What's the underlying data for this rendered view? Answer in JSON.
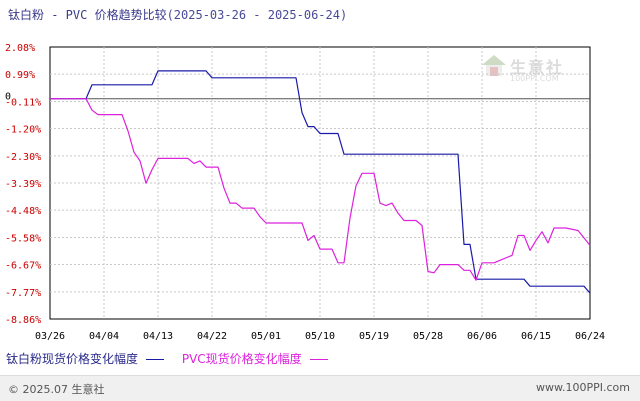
{
  "header": {
    "title": "钛白粉 - PVC 价格趋势比较",
    "date_range": "(2025-03-26 - 2025-06-24)"
  },
  "watermark": {
    "name": "生意社",
    "url": "100PPI.COM"
  },
  "footer": {
    "copyright": "© 2025.07 生意社",
    "site": "www.100PPI.com"
  },
  "colors": {
    "series1": "#1a1aa8",
    "series2": "#dd22dd",
    "axis": "#000000",
    "grid": "#bbbbbb",
    "ytick": "#cc0000"
  },
  "chart_data": {
    "type": "line",
    "title": "钛白粉 - PVC 价格趋势比较",
    "xlabel": "",
    "ylabel": "",
    "x_ticks": [
      "03/26",
      "04/04",
      "04/13",
      "04/22",
      "05/01",
      "05/10",
      "05/19",
      "05/28",
      "06/06",
      "06/15",
      "06/24"
    ],
    "y_ticks": [
      "2.08%",
      "0.99%",
      "-0.11%",
      "-1.20%",
      "-2.30%",
      "-3.39%",
      "-4.48%",
      "-5.58%",
      "-6.67%",
      "-7.77%",
      "-8.86%"
    ],
    "y_tick_values": [
      2.08,
      0.99,
      -0.11,
      -1.2,
      -2.3,
      -3.39,
      -4.48,
      -5.58,
      -6.67,
      -7.77,
      -8.86
    ],
    "ylim": [
      -8.86,
      2.08
    ],
    "zero_label": "0",
    "grid": true,
    "legend": "bottom",
    "x_start": "2025-03-26",
    "x_end": "2025-06-24",
    "series": [
      {
        "name": "钛白粉现货价格变化幅度",
        "color": "#1a1aa8",
        "points": [
          [
            "2025-03-26",
            0.0
          ],
          [
            "2025-04-01",
            0.0
          ],
          [
            "2025-04-02",
            0.56
          ],
          [
            "2025-04-12",
            0.56
          ],
          [
            "2025-04-13",
            1.12
          ],
          [
            "2025-04-21",
            1.12
          ],
          [
            "2025-04-22",
            0.84
          ],
          [
            "2025-05-06",
            0.84
          ],
          [
            "2025-05-07",
            -0.56
          ],
          [
            "2025-05-08",
            -1.12
          ],
          [
            "2025-05-09",
            -1.12
          ],
          [
            "2025-05-10",
            -1.4
          ],
          [
            "2025-05-13",
            -1.4
          ],
          [
            "2025-05-14",
            -2.23
          ],
          [
            "2025-06-02",
            -2.23
          ],
          [
            "2025-06-03",
            -5.86
          ],
          [
            "2025-06-04",
            -5.86
          ],
          [
            "2025-06-05",
            -7.26
          ],
          [
            "2025-06-13",
            -7.26
          ],
          [
            "2025-06-14",
            -7.54
          ],
          [
            "2025-06-23",
            -7.54
          ],
          [
            "2025-06-24",
            -7.82
          ]
        ]
      },
      {
        "name": "PVC现货价格变化幅度",
        "color": "#dd22dd",
        "points": [
          [
            "2025-03-26",
            0.0
          ],
          [
            "2025-04-01",
            0.0
          ],
          [
            "2025-04-02",
            -0.46
          ],
          [
            "2025-04-03",
            -0.64
          ],
          [
            "2025-04-07",
            -0.64
          ],
          [
            "2025-04-08",
            -1.3
          ],
          [
            "2025-04-09",
            -2.15
          ],
          [
            "2025-04-10",
            -2.5
          ],
          [
            "2025-04-11",
            -3.4
          ],
          [
            "2025-04-12",
            -2.85
          ],
          [
            "2025-04-13",
            -2.4
          ],
          [
            "2025-04-18",
            -2.4
          ],
          [
            "2025-04-19",
            -2.6
          ],
          [
            "2025-04-20",
            -2.5
          ],
          [
            "2025-04-21",
            -2.75
          ],
          [
            "2025-04-23",
            -2.75
          ],
          [
            "2025-04-24",
            -3.6
          ],
          [
            "2025-04-25",
            -4.2
          ],
          [
            "2025-04-26",
            -4.2
          ],
          [
            "2025-04-27",
            -4.4
          ],
          [
            "2025-04-29",
            -4.4
          ],
          [
            "2025-04-30",
            -4.75
          ],
          [
            "2025-05-01",
            -5.0
          ],
          [
            "2025-05-07",
            -5.0
          ],
          [
            "2025-05-08",
            -5.7
          ],
          [
            "2025-05-09",
            -5.5
          ],
          [
            "2025-05-10",
            -6.05
          ],
          [
            "2025-05-12",
            -6.05
          ],
          [
            "2025-05-13",
            -6.6
          ],
          [
            "2025-05-14",
            -6.6
          ],
          [
            "2025-05-15",
            -4.8
          ],
          [
            "2025-05-16",
            -3.5
          ],
          [
            "2025-05-17",
            -3.0
          ],
          [
            "2025-05-19",
            -3.0
          ],
          [
            "2025-05-20",
            -4.2
          ],
          [
            "2025-05-21",
            -4.3
          ],
          [
            "2025-05-22",
            -4.2
          ],
          [
            "2025-05-23",
            -4.6
          ],
          [
            "2025-05-24",
            -4.9
          ],
          [
            "2025-05-26",
            -4.9
          ],
          [
            "2025-05-27",
            -5.1
          ],
          [
            "2025-05-28",
            -6.95
          ],
          [
            "2025-05-29",
            -7.0
          ],
          [
            "2025-05-30",
            -6.67
          ],
          [
            "2025-06-02",
            -6.67
          ],
          [
            "2025-06-03",
            -6.9
          ],
          [
            "2025-06-04",
            -6.9
          ],
          [
            "2025-06-05",
            -7.3
          ],
          [
            "2025-06-06",
            -6.6
          ],
          [
            "2025-06-08",
            -6.6
          ],
          [
            "2025-06-09",
            -6.5
          ],
          [
            "2025-06-11",
            -6.3
          ],
          [
            "2025-06-12",
            -5.5
          ],
          [
            "2025-06-13",
            -5.5
          ],
          [
            "2025-06-14",
            -6.1
          ],
          [
            "2025-06-15",
            -5.7
          ],
          [
            "2025-06-16",
            -5.35
          ],
          [
            "2025-06-17",
            -5.8
          ],
          [
            "2025-06-18",
            -5.2
          ],
          [
            "2025-06-20",
            -5.2
          ],
          [
            "2025-06-22",
            -5.3
          ],
          [
            "2025-06-23",
            -5.6
          ],
          [
            "2025-06-24",
            -5.9
          ]
        ]
      }
    ]
  }
}
